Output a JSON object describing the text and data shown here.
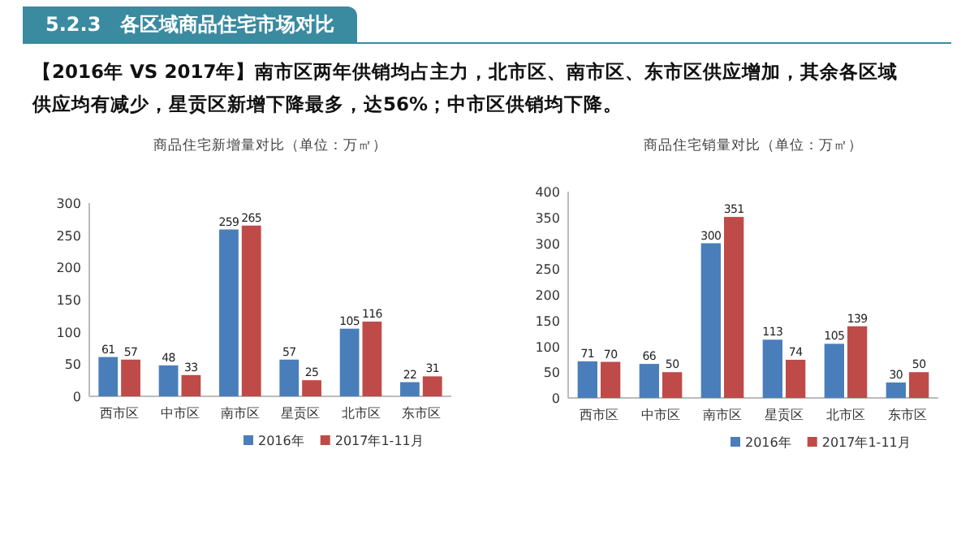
{
  "chart_data": [
    {
      "type": "bar",
      "title": "商品住宅新增量对比（单位：万㎡）",
      "annotations": [
        "5.2.3　各区域商品住宅市场对比",
        "【2016年 VS 2017年】南市区两年供销均占主力，北市区、南市区、东市区供应增加，其余各区域供应均有减少，星贡区新增下降最多，达56%；中市区供销均下降。"
      ],
      "categories": [
        "西市区",
        "中市区",
        "南市区",
        "星贡区",
        "北市区",
        "东市区"
      ],
      "series": [
        {
          "name": "2016年",
          "color": "#4a7ebb",
          "values": [
            61,
            48,
            259,
            57,
            105,
            22
          ]
        },
        {
          "name": "2017年1-11月",
          "color": "#be4b48",
          "values": [
            57,
            33,
            265,
            25,
            116,
            31
          ]
        }
      ],
      "ylim": [
        0,
        300
      ],
      "yticks": [
        0,
        50,
        100,
        150,
        200,
        250,
        300
      ],
      "data_labels": true,
      "legend": "bottom",
      "grid": false
    },
    {
      "type": "bar",
      "title": "商品住宅销量对比（单位：万㎡）",
      "categories": [
        "西市区",
        "中市区",
        "南市区",
        "星贡区",
        "北市区",
        "东市区"
      ],
      "series": [
        {
          "name": "2016年",
          "color": "#4a7ebb",
          "values": [
            71,
            66,
            300,
            113,
            105,
            30
          ]
        },
        {
          "name": "2017年1-11月",
          "color": "#be4b48",
          "values": [
            70,
            50,
            351,
            74,
            139,
            50
          ]
        }
      ],
      "ylim": [
        0,
        400
      ],
      "yticks": [
        0,
        50,
        100,
        150,
        200,
        250,
        300,
        350,
        400
      ],
      "data_labels": true,
      "legend": "bottom",
      "grid": false
    }
  ]
}
